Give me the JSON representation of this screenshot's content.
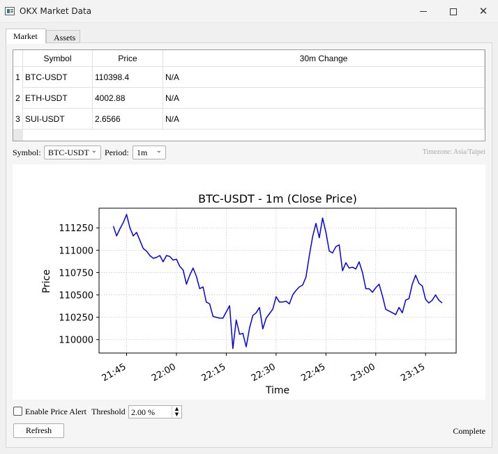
{
  "window": {
    "title": "OKX Market Data"
  },
  "tabs": [
    {
      "label": "Market"
    },
    {
      "label": "Assets"
    }
  ],
  "table": {
    "headers": [
      "Symbol",
      "Price",
      "30m Change"
    ],
    "rows": [
      {
        "index": "1",
        "symbol": "BTC-USDT",
        "price": "110398.4",
        "change": "N/A"
      },
      {
        "index": "2",
        "symbol": "ETH-USDT",
        "price": "4002.88",
        "change": "N/A"
      },
      {
        "index": "3",
        "symbol": "SUI-USDT",
        "price": "2.6566",
        "change": "N/A"
      }
    ]
  },
  "controls": {
    "symbol_label": "Symbol:",
    "symbol_value": "BTC-USDT",
    "period_label": "Period:",
    "period_value": "1m",
    "timezone": "Timezone: Asia/Taipei"
  },
  "chart_data": {
    "type": "line",
    "title": "BTC-USDT - 1m (Close Price)",
    "xlabel": "Time",
    "ylabel": "Price",
    "x_ticks": [
      "21:45",
      "22:00",
      "22:15",
      "22:30",
      "22:45",
      "23:00",
      "23:15"
    ],
    "y_ticks": [
      110000,
      110250,
      110500,
      110750,
      111000,
      111250
    ],
    "ylim": [
      109850,
      111470
    ],
    "grid": true,
    "line_color": "#0000ee",
    "series": [
      {
        "x": [
          "21:41",
          "21:42",
          "21:43",
          "21:44",
          "21:45",
          "21:46",
          "21:47",
          "21:48",
          "21:49",
          "21:50",
          "21:51",
          "21:52",
          "21:53",
          "21:54",
          "21:55",
          "21:56",
          "21:57",
          "21:58",
          "21:59",
          "22:00",
          "22:01",
          "22:02",
          "22:03",
          "22:04",
          "22:05",
          "22:06",
          "22:07",
          "22:08",
          "22:09",
          "22:10",
          "22:11",
          "22:12",
          "22:13",
          "22:14",
          "22:15",
          "22:16",
          "22:17",
          "22:18",
          "22:19",
          "22:20",
          "22:21",
          "22:22",
          "22:23",
          "22:24",
          "22:25",
          "22:26",
          "22:27",
          "22:28",
          "22:29",
          "22:30",
          "22:31",
          "22:32",
          "22:33",
          "22:34",
          "22:35",
          "22:36",
          "22:37",
          "22:38",
          "22:39",
          "22:40",
          "22:41",
          "22:42",
          "22:43",
          "22:44",
          "22:45",
          "22:46",
          "22:47",
          "22:48",
          "22:49",
          "22:50",
          "22:51",
          "22:52",
          "22:53",
          "22:54",
          "22:55",
          "22:56",
          "22:57",
          "22:58",
          "22:59",
          "23:00",
          "23:01",
          "23:02",
          "23:03",
          "23:04",
          "23:05",
          "23:06",
          "23:07",
          "23:08",
          "23:09",
          "23:10",
          "23:11",
          "23:12",
          "23:13",
          "23:14",
          "23:15",
          "23:16",
          "23:17",
          "23:18",
          "23:19",
          "23:20"
        ],
        "values": [
          111270,
          111160,
          111240,
          111310,
          111400,
          111250,
          111160,
          111200,
          111110,
          111020,
          110990,
          110940,
          110910,
          110920,
          110940,
          110870,
          110940,
          110930,
          110890,
          110900,
          110820,
          110780,
          110620,
          110720,
          110800,
          110710,
          110570,
          110590,
          110420,
          110400,
          110260,
          110250,
          110240,
          110240,
          110310,
          110380,
          109900,
          110220,
          110060,
          110070,
          109920,
          110130,
          110270,
          110300,
          110360,
          110120,
          110240,
          110290,
          110340,
          110480,
          110420,
          110420,
          110430,
          110400,
          110500,
          110550,
          110590,
          110610,
          110700,
          110940,
          111150,
          111300,
          111140,
          111360,
          111200,
          110990,
          110970,
          111040,
          111060,
          110770,
          110860,
          110800,
          110810,
          110790,
          110870,
          110750,
          110570,
          110570,
          110530,
          110580,
          110620,
          110490,
          110340,
          110320,
          110300,
          110280,
          110360,
          110300,
          110440,
          110460,
          110620,
          110720,
          110630,
          110600,
          110450,
          110410,
          110440,
          110500,
          110440,
          110410
        ]
      }
    ]
  },
  "alert": {
    "checkbox_label": "Enable Price Alert",
    "threshold_label": "Threshold",
    "threshold_value": "2.00 %"
  },
  "refresh_label": "Refresh",
  "status_text": "Complete"
}
